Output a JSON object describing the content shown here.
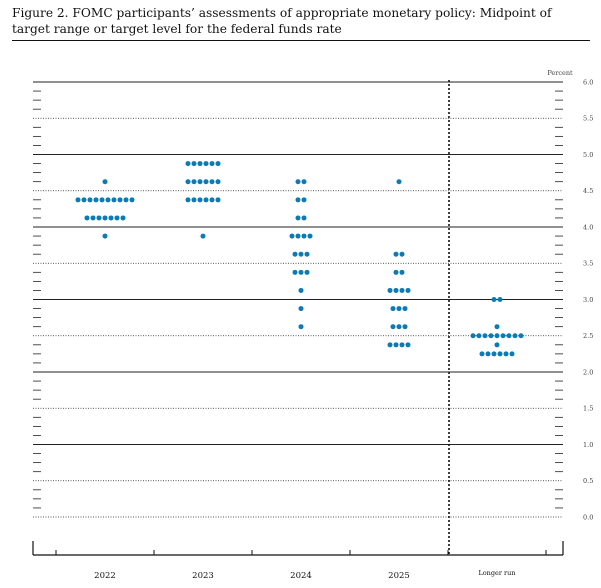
{
  "figure": {
    "title": "Figure 2. FOMC participants’ assessments of appropriate monetary policy: Midpoint of target range or target level for the federal funds rate"
  },
  "chart_data": {
    "type": "scatter",
    "title": "Figure 2. FOMC participants’ assessments of appropriate monetary policy: Midpoint of target range or target level for the federal funds rate",
    "ylabel": "Percent",
    "ylim": [
      0,
      6
    ],
    "yticks": [
      "0.0",
      "0.5",
      "1.0",
      "1.5",
      "2.0",
      "2.5",
      "3.0",
      "3.5",
      "4.0",
      "4.5",
      "5.0",
      "5.5",
      "6.0"
    ],
    "categories": [
      "2022",
      "2023",
      "2024",
      "2025",
      "Longer run"
    ],
    "grid": true,
    "colors": {
      "dot": "#0a7bb5",
      "grid": "#222222"
    },
    "series": [
      {
        "category": "2022",
        "points": [
          {
            "y": 4.625,
            "count": 1
          },
          {
            "y": 4.375,
            "count": 10
          },
          {
            "y": 4.125,
            "count": 7
          },
          {
            "y": 3.875,
            "count": 1
          }
        ]
      },
      {
        "category": "2023",
        "points": [
          {
            "y": 4.875,
            "count": 6
          },
          {
            "y": 4.625,
            "count": 6
          },
          {
            "y": 4.375,
            "count": 6
          },
          {
            "y": 3.875,
            "count": 1
          }
        ]
      },
      {
        "category": "2024",
        "points": [
          {
            "y": 4.625,
            "count": 2
          },
          {
            "y": 4.375,
            "count": 2
          },
          {
            "y": 4.125,
            "count": 2
          },
          {
            "y": 3.875,
            "count": 4
          },
          {
            "y": 3.625,
            "count": 3
          },
          {
            "y": 3.375,
            "count": 3
          },
          {
            "y": 3.125,
            "count": 1
          },
          {
            "y": 2.875,
            "count": 1
          },
          {
            "y": 2.625,
            "count": 1
          }
        ]
      },
      {
        "category": "2025",
        "points": [
          {
            "y": 4.625,
            "count": 1
          },
          {
            "y": 3.625,
            "count": 2
          },
          {
            "y": 3.375,
            "count": 2
          },
          {
            "y": 3.125,
            "count": 4
          },
          {
            "y": 2.875,
            "count": 3
          },
          {
            "y": 2.625,
            "count": 3
          },
          {
            "y": 2.375,
            "count": 4
          }
        ]
      },
      {
        "category": "Longer run",
        "points": [
          {
            "y": 3.0,
            "count": 2
          },
          {
            "y": 2.625,
            "count": 1
          },
          {
            "y": 2.5,
            "count": 9
          },
          {
            "y": 2.375,
            "count": 1
          },
          {
            "y": 2.25,
            "count": 6
          }
        ]
      }
    ]
  }
}
